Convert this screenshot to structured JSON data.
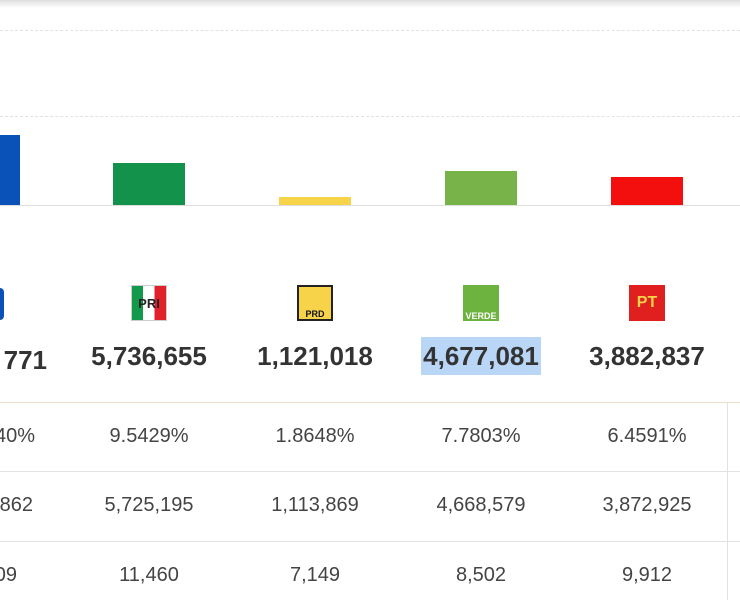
{
  "first_column": {
    "votes": "771",
    "percent": "40%",
    "row2": "862",
    "row3": "09"
  },
  "parties": [
    {
      "logo": "PRI",
      "votes": "5,736,655",
      "percent": "9.5429%",
      "row2": "5,725,195",
      "row3": "11,460",
      "color": "#12924a"
    },
    {
      "logo": "PRD",
      "votes": "1,121,018",
      "percent": "1.8648%",
      "row2": "1,113,869",
      "row3": "7,149",
      "color": "#f7d34a"
    },
    {
      "logo": "VERDE",
      "votes": "4,677,081",
      "percent": "7.7803%",
      "row2": "4,668,579",
      "row3": "8,502",
      "color": "#78b34a",
      "highlighted": true
    },
    {
      "logo": "PT",
      "votes": "3,882,837",
      "percent": "6.4591%",
      "row2": "3,872,925",
      "row3": "9,912",
      "color": "#f40f0f"
    }
  ]
}
